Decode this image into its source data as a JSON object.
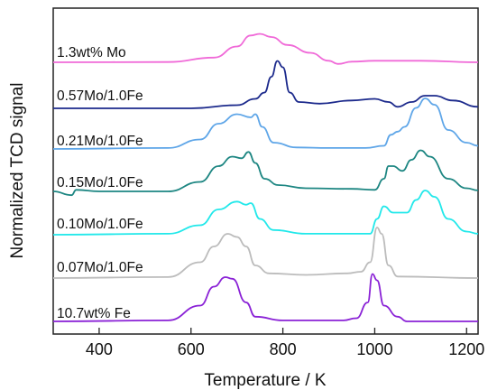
{
  "chart_data": {
    "type": "line",
    "title": "",
    "xlabel": "Temperature / K",
    "ylabel": "Normalized TCD signal",
    "xlim": [
      300,
      1225
    ],
    "xticks": [
      400,
      600,
      800,
      1000,
      1200
    ],
    "xtick_labels": [
      "400",
      "600",
      "800",
      "1000",
      "1200"
    ],
    "yticks": [],
    "grid": false,
    "legend": "none (series labelled directly above each trace)",
    "series": [
      {
        "name": "1.3wt% Mo",
        "color": "#f06ad8",
        "points": [
          [
            300,
            0
          ],
          [
            550,
            0.1
          ],
          [
            650,
            1.5
          ],
          [
            700,
            5
          ],
          [
            730,
            8.5
          ],
          [
            750,
            9
          ],
          [
            775,
            8
          ],
          [
            810,
            5.5
          ],
          [
            860,
            3
          ],
          [
            900,
            0.5
          ],
          [
            920,
            -0.5
          ],
          [
            950,
            0.2
          ],
          [
            1000,
            0.5
          ],
          [
            1100,
            0.5
          ],
          [
            1225,
            0
          ]
        ]
      },
      {
        "name": "0.57Mo/1.0Fe",
        "color": "#1c2a8c",
        "points": [
          [
            300,
            0
          ],
          [
            600,
            0
          ],
          [
            700,
            1
          ],
          [
            740,
            3
          ],
          [
            760,
            5
          ],
          [
            775,
            10
          ],
          [
            788,
            15
          ],
          [
            800,
            13
          ],
          [
            815,
            5
          ],
          [
            835,
            2
          ],
          [
            880,
            1.5
          ],
          [
            950,
            2.5
          ],
          [
            1000,
            3
          ],
          [
            1030,
            2
          ],
          [
            1050,
            0.5
          ],
          [
            1080,
            2
          ],
          [
            1110,
            4
          ],
          [
            1130,
            4
          ],
          [
            1170,
            2.5
          ],
          [
            1225,
            0.5
          ]
        ]
      },
      {
        "name": "0.21Mo/1.0Fe",
        "color": "#5fa6e8",
        "points": [
          [
            300,
            0
          ],
          [
            550,
            0.3
          ],
          [
            620,
            3
          ],
          [
            660,
            8
          ],
          [
            700,
            11
          ],
          [
            730,
            10
          ],
          [
            740,
            11
          ],
          [
            755,
            7
          ],
          [
            780,
            2
          ],
          [
            830,
            0.5
          ],
          [
            900,
            0.3
          ],
          [
            980,
            0.3
          ],
          [
            1020,
            1
          ],
          [
            1035,
            4.5
          ],
          [
            1050,
            5.5
          ],
          [
            1065,
            7
          ],
          [
            1090,
            13
          ],
          [
            1110,
            16
          ],
          [
            1130,
            14
          ],
          [
            1160,
            6
          ],
          [
            1200,
            2
          ],
          [
            1225,
            1
          ]
        ]
      },
      {
        "name": "0.15Mo/1.0Fe",
        "color": "#1d8682",
        "points": [
          [
            300,
            0
          ],
          [
            340,
            -1.2
          ],
          [
            350,
            0.5
          ],
          [
            400,
            0
          ],
          [
            550,
            0
          ],
          [
            620,
            3
          ],
          [
            660,
            8
          ],
          [
            690,
            11
          ],
          [
            710,
            10.5
          ],
          [
            725,
            12.5
          ],
          [
            740,
            9
          ],
          [
            760,
            4
          ],
          [
            790,
            2
          ],
          [
            850,
            1
          ],
          [
            950,
            0.8
          ],
          [
            1000,
            0.5
          ],
          [
            1020,
            4
          ],
          [
            1030,
            8
          ],
          [
            1040,
            8
          ],
          [
            1060,
            6.5
          ],
          [
            1080,
            10
          ],
          [
            1100,
            13
          ],
          [
            1120,
            11
          ],
          [
            1160,
            4
          ],
          [
            1200,
            1
          ],
          [
            1225,
            0.3
          ]
        ]
      },
      {
        "name": "0.10Mo/1.0Fe",
        "color": "#22e8ea",
        "points": [
          [
            300,
            0
          ],
          [
            550,
            0.3
          ],
          [
            620,
            3
          ],
          [
            660,
            8
          ],
          [
            700,
            10.5
          ],
          [
            720,
            9.5
          ],
          [
            730,
            10
          ],
          [
            750,
            5
          ],
          [
            780,
            1.5
          ],
          [
            850,
            0.3
          ],
          [
            990,
            0.3
          ],
          [
            1005,
            5
          ],
          [
            1020,
            9
          ],
          [
            1040,
            7
          ],
          [
            1070,
            7
          ],
          [
            1090,
            11
          ],
          [
            1110,
            14
          ],
          [
            1130,
            12
          ],
          [
            1160,
            5
          ],
          [
            1200,
            1
          ],
          [
            1225,
            0.3
          ]
        ]
      },
      {
        "name": "0.07Mo/1.0Fe",
        "color": "#bcbcbc",
        "points": [
          [
            300,
            0
          ],
          [
            550,
            0.3
          ],
          [
            620,
            5
          ],
          [
            650,
            10
          ],
          [
            680,
            14
          ],
          [
            700,
            13
          ],
          [
            720,
            10
          ],
          [
            740,
            4
          ],
          [
            770,
            1.5
          ],
          [
            850,
            1
          ],
          [
            940,
            1.5
          ],
          [
            970,
            2
          ],
          [
            990,
            5
          ],
          [
            1005,
            16
          ],
          [
            1015,
            14
          ],
          [
            1030,
            4
          ],
          [
            1050,
            0.5
          ],
          [
            1225,
            0
          ]
        ]
      },
      {
        "name": "10.7wt% Fe",
        "color": "#8a22d6",
        "points": [
          [
            300,
            0
          ],
          [
            550,
            0.3
          ],
          [
            620,
            5
          ],
          [
            650,
            11
          ],
          [
            675,
            14
          ],
          [
            690,
            13.5
          ],
          [
            720,
            6
          ],
          [
            740,
            1.5
          ],
          [
            800,
            0.3
          ],
          [
            930,
            0.3
          ],
          [
            960,
            1
          ],
          [
            985,
            6
          ],
          [
            995,
            15
          ],
          [
            1005,
            13
          ],
          [
            1020,
            5
          ],
          [
            1050,
            1.5
          ],
          [
            1070,
            0
          ],
          [
            1225,
            0
          ]
        ]
      }
    ]
  }
}
